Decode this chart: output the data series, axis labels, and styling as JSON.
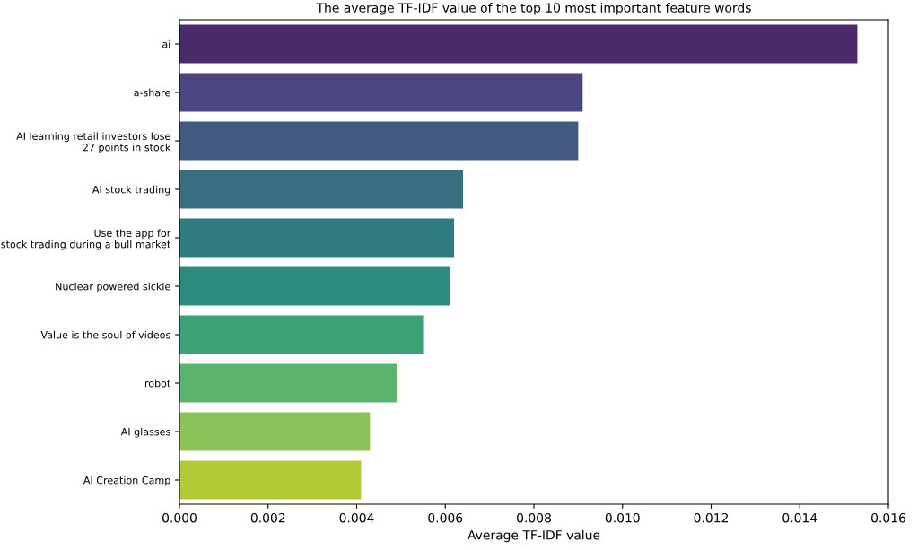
{
  "chart_data": {
    "type": "bar",
    "orientation": "horizontal",
    "title": "The average TF-IDF value of the top 10 most important feature words",
    "xlabel": "Average TF-IDF value",
    "categories": [
      "ai",
      "a-share",
      "AI learning retail investors lose\n27 points in stock",
      "AI stock trading",
      "Use the app for\nstock trading during a bull market",
      "Nuclear powered sickle",
      "Value is the soul of videos",
      "robot",
      "AI glasses",
      "AI Creation Camp"
    ],
    "values": [
      0.0153,
      0.0091,
      0.009,
      0.0064,
      0.0062,
      0.0061,
      0.0055,
      0.0049,
      0.0043,
      0.0041
    ],
    "colors": [
      "#4a2a6b",
      "#4a4780",
      "#425a80",
      "#386e80",
      "#2f7d80",
      "#2b8c7e",
      "#3ba177",
      "#5bb46b",
      "#8bc35a",
      "#b4c936"
    ],
    "xlim": [
      0,
      0.016
    ],
    "xticks": [
      {
        "value": 0,
        "label": "0.000"
      },
      0.002,
      0.004,
      0.006,
      0.008,
      {
        "value": 0.01,
        "label": "0.010"
      },
      0.012,
      0.014,
      0.016
    ],
    "grid": false
  }
}
